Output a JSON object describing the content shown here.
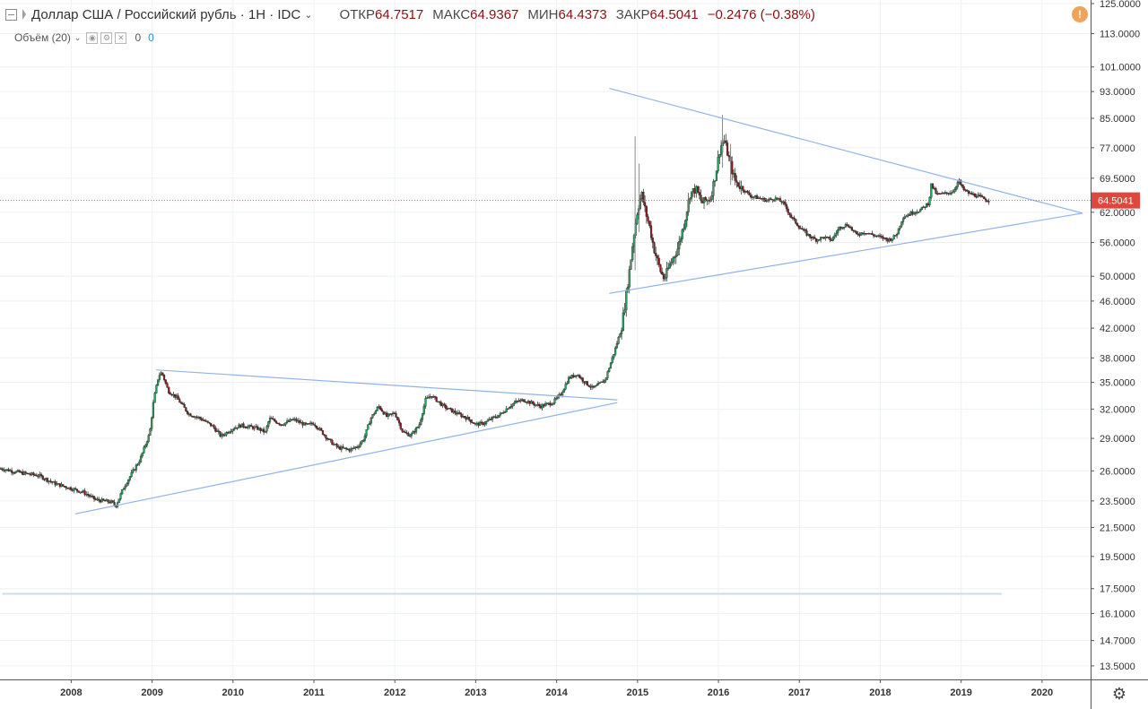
{
  "header": {
    "symbol": "Доллар США / Российский рубль · 1Н · IDC",
    "open_label": "ОТКР",
    "open": "64.7517",
    "high_label": "МАКС",
    "high": "64.9367",
    "low_label": "МИН",
    "low": "64.4373",
    "close_label": "ЗАКР",
    "close": "64.5041",
    "change": "−0.2476 (−0.38%)"
  },
  "volume": {
    "label": "Объём (20)",
    "v1": "0",
    "v2": "0"
  },
  "price_tag": "64.5041",
  "colors": {
    "up": "#26a65b",
    "down": "#8b1a1a",
    "trendline": "#8fb3e8",
    "price_line": "#d9534f",
    "grid": "#eef1f4",
    "tag": "#e0463c",
    "h_line": "#c8ddf0"
  },
  "chart_data": {
    "type": "candlestick",
    "y_scale": "log",
    "ylim": [
      12.9,
      126.5
    ],
    "xlim": [
      2007.12,
      2020.6
    ],
    "y_ticks": [
      125,
      113,
      101,
      93,
      85,
      77,
      69.5,
      62,
      56,
      50,
      46,
      42,
      38,
      35,
      32,
      29,
      26,
      23.5,
      21.5,
      19.5,
      17.5,
      16.1,
      14.7,
      13.5
    ],
    "x_ticks": [
      2008,
      2009,
      2010,
      2011,
      2012,
      2013,
      2014,
      2015,
      2016,
      2017,
      2018,
      2019,
      2020
    ],
    "last_price": 64.5041,
    "close_path": [
      [
        2007.13,
        26.2
      ],
      [
        2007.4,
        25.8
      ],
      [
        2007.6,
        25.6
      ],
      [
        2007.8,
        24.9
      ],
      [
        2008.0,
        24.5
      ],
      [
        2008.15,
        24.2
      ],
      [
        2008.3,
        23.6
      ],
      [
        2008.5,
        23.4
      ],
      [
        2008.55,
        23.1
      ],
      [
        2008.65,
        24.6
      ],
      [
        2008.75,
        25.8
      ],
      [
        2008.85,
        27.0
      ],
      [
        2008.97,
        29.5
      ],
      [
        2009.02,
        33.0
      ],
      [
        2009.08,
        35.8
      ],
      [
        2009.12,
        36.2
      ],
      [
        2009.2,
        34.0
      ],
      [
        2009.3,
        33.3
      ],
      [
        2009.45,
        31.5
      ],
      [
        2009.6,
        31.0
      ],
      [
        2009.75,
        30.2
      ],
      [
        2009.85,
        29.2
      ],
      [
        2010.0,
        30.0
      ],
      [
        2010.1,
        30.3
      ],
      [
        2010.3,
        30.0
      ],
      [
        2010.4,
        29.6
      ],
      [
        2010.45,
        31.0
      ],
      [
        2010.6,
        30.4
      ],
      [
        2010.75,
        30.9
      ],
      [
        2010.9,
        30.3
      ],
      [
        2011.0,
        30.5
      ],
      [
        2011.1,
        29.6
      ],
      [
        2011.2,
        28.7
      ],
      [
        2011.3,
        28.1
      ],
      [
        2011.45,
        27.9
      ],
      [
        2011.55,
        28.3
      ],
      [
        2011.62,
        29.0
      ],
      [
        2011.7,
        31.0
      ],
      [
        2011.8,
        32.3
      ],
      [
        2011.9,
        31.2
      ],
      [
        2012.0,
        31.6
      ],
      [
        2012.1,
        29.6
      ],
      [
        2012.2,
        29.3
      ],
      [
        2012.3,
        30.3
      ],
      [
        2012.38,
        33.0
      ],
      [
        2012.45,
        33.5
      ],
      [
        2012.6,
        32.3
      ],
      [
        2012.75,
        31.6
      ],
      [
        2012.9,
        31.0
      ],
      [
        2013.0,
        30.4
      ],
      [
        2013.1,
        30.5
      ],
      [
        2013.2,
        31.0
      ],
      [
        2013.3,
        31.4
      ],
      [
        2013.4,
        32.2
      ],
      [
        2013.5,
        32.8
      ],
      [
        2013.6,
        33.0
      ],
      [
        2013.7,
        32.6
      ],
      [
        2013.8,
        32.3
      ],
      [
        2013.95,
        32.7
      ],
      [
        2014.05,
        33.6
      ],
      [
        2014.15,
        35.5
      ],
      [
        2014.25,
        36.0
      ],
      [
        2014.35,
        35.0
      ],
      [
        2014.45,
        34.3
      ],
      [
        2014.5,
        34.6
      ],
      [
        2014.6,
        35.3
      ],
      [
        2014.65,
        36.8
      ],
      [
        2014.72,
        39.0
      ],
      [
        2014.8,
        42.0
      ],
      [
        2014.85,
        46.0
      ],
      [
        2014.9,
        51.0
      ],
      [
        2014.95,
        57.0
      ],
      [
        2015.0,
        62.5
      ],
      [
        2015.05,
        66.0
      ],
      [
        2015.1,
        62.0
      ],
      [
        2015.15,
        59.0
      ],
      [
        2015.2,
        55.0
      ],
      [
        2015.28,
        51.0
      ],
      [
        2015.33,
        49.5
      ],
      [
        2015.4,
        52.0
      ],
      [
        2015.5,
        55.0
      ],
      [
        2015.58,
        60.0
      ],
      [
        2015.65,
        66.0
      ],
      [
        2015.72,
        67.0
      ],
      [
        2015.8,
        64.0
      ],
      [
        2015.9,
        65.0
      ],
      [
        2015.97,
        71.0
      ],
      [
        2016.02,
        77.0
      ],
      [
        2016.07,
        79.0
      ],
      [
        2016.12,
        75.0
      ],
      [
        2016.2,
        69.0
      ],
      [
        2016.3,
        67.0
      ],
      [
        2016.4,
        65.5
      ],
      [
        2016.5,
        65.0
      ],
      [
        2016.6,
        64.5
      ],
      [
        2016.7,
        65.0
      ],
      [
        2016.8,
        64.0
      ],
      [
        2016.9,
        61.0
      ],
      [
        2017.0,
        59.0
      ],
      [
        2017.1,
        57.5
      ],
      [
        2017.2,
        56.5
      ],
      [
        2017.3,
        57.0
      ],
      [
        2017.4,
        56.5
      ],
      [
        2017.5,
        59.0
      ],
      [
        2017.6,
        59.5
      ],
      [
        2017.7,
        57.5
      ],
      [
        2017.8,
        58.0
      ],
      [
        2017.9,
        57.5
      ],
      [
        2018.0,
        57.0
      ],
      [
        2018.1,
        56.5
      ],
      [
        2018.15,
        56.8
      ],
      [
        2018.2,
        57.5
      ],
      [
        2018.28,
        61.0
      ],
      [
        2018.4,
        62.0
      ],
      [
        2018.5,
        62.5
      ],
      [
        2018.6,
        64.0
      ],
      [
        2018.63,
        68.0
      ],
      [
        2018.7,
        65.8
      ],
      [
        2018.8,
        66.0
      ],
      [
        2018.9,
        66.5
      ],
      [
        2018.97,
        69.0
      ],
      [
        2019.02,
        67.0
      ],
      [
        2019.1,
        66.0
      ],
      [
        2019.2,
        65.5
      ],
      [
        2019.3,
        64.7
      ],
      [
        2019.35,
        64.5
      ]
    ],
    "spikes": [
      {
        "x": 2014.97,
        "low": 51.0,
        "high": 80.0
      },
      {
        "x": 2016.05,
        "low": 72.0,
        "high": 86.0
      },
      {
        "x": 2015.02,
        "low": 58.0,
        "high": 73.0
      },
      {
        "x": 2016.15,
        "low": 68.0,
        "high": 78.0
      }
    ],
    "trendlines": [
      {
        "from": [
          2008.05,
          22.5
        ],
        "to": [
          2014.75,
          32.7
        ]
      },
      {
        "from": [
          2009.05,
          36.5
        ],
        "to": [
          2014.75,
          33.0
        ]
      },
      {
        "from": [
          2014.65,
          47.2
        ],
        "to": [
          2020.5,
          61.8
        ]
      },
      {
        "from": [
          2014.65,
          94.0
        ],
        "to": [
          2020.5,
          61.8
        ]
      }
    ],
    "h_line": {
      "y": 17.2,
      "x_from": 2007.15,
      "x_to": 2019.5
    }
  }
}
